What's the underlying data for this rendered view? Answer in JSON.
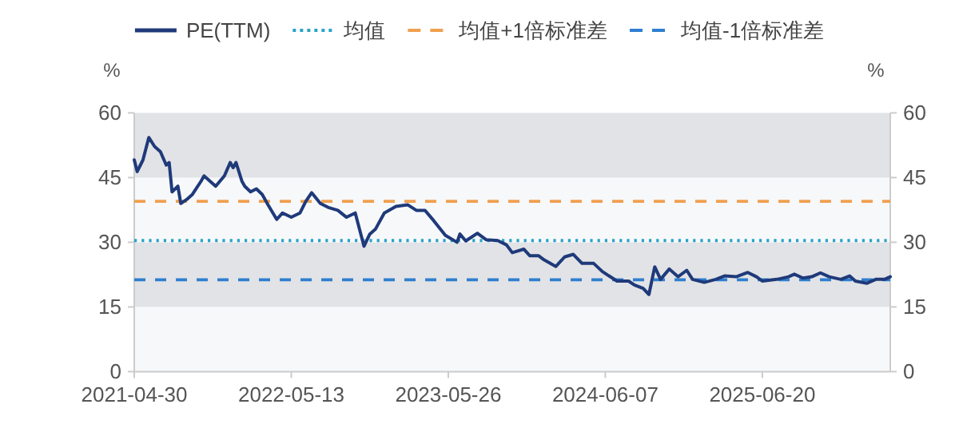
{
  "chart_data": {
    "type": "line",
    "ylabel": "%",
    "y2label": "%",
    "legend": "top",
    "grid": false,
    "xlim": [
      "2021-04-30",
      "2026-04-24"
    ],
    "xticks": [
      "2021-04-30",
      "2022-05-13",
      "2023-05-26",
      "2024-06-07",
      "2025-06-20"
    ],
    "ylim": [
      0,
      60
    ],
    "yticks": [
      0,
      15,
      30,
      45,
      60
    ],
    "y2lim": [
      0,
      60
    ],
    "y2ticks": [
      0,
      15,
      30,
      45,
      60
    ],
    "bands": [
      {
        "axis": "y",
        "from": 0,
        "to": 15,
        "color": "#f7f8fa"
      },
      {
        "axis": "y",
        "from": 15,
        "to": 30,
        "color": "#e2e3e6"
      },
      {
        "axis": "y",
        "from": 30,
        "to": 45,
        "color": "#f7f8fa"
      },
      {
        "axis": "y",
        "from": 45,
        "to": 60,
        "color": "#e2e3e6"
      }
    ],
    "ref_lines": [
      {
        "axis": "y",
        "value": 30.4,
        "label": "均值",
        "color": "#2aa3c8",
        "line_style": "dotted"
      },
      {
        "axis": "y",
        "value": 39.5,
        "label": "均值+1倍标准差",
        "color": "#f0a050",
        "line_style": "dashed"
      },
      {
        "axis": "y",
        "value": 21.3,
        "label": "均值-1倍标准差",
        "color": "#2f7fd0",
        "line_style": "dashed"
      }
    ],
    "series": [
      {
        "name": "PE(TTM)",
        "color": "#1f3a7a",
        "line_style": "solid",
        "x": [
          "2021-04-30",
          "2021-05-07",
          "2021-05-21",
          "2021-06-04",
          "2021-06-18",
          "2021-07-02",
          "2021-07-16",
          "2021-07-23",
          "2021-07-30",
          "2021-08-13",
          "2021-08-20",
          "2021-09-03",
          "2021-09-17",
          "2021-10-08",
          "2021-10-15",
          "2021-10-29",
          "2021-11-12",
          "2021-12-03",
          "2021-12-17",
          "2021-12-24",
          "2021-12-31",
          "2022-01-14",
          "2022-01-21",
          "2022-02-04",
          "2022-02-18",
          "2022-03-04",
          "2022-03-18",
          "2022-04-08",
          "2022-04-22",
          "2022-05-13",
          "2022-06-03",
          "2022-06-17",
          "2022-07-01",
          "2022-07-22",
          "2022-08-12",
          "2022-09-02",
          "2022-09-23",
          "2022-10-14",
          "2022-11-04",
          "2022-11-18",
          "2022-12-02",
          "2022-12-23",
          "2023-01-20",
          "2023-02-17",
          "2023-03-10",
          "2023-03-31",
          "2023-04-21",
          "2023-05-19",
          "2023-06-16",
          "2023-06-23",
          "2023-07-07",
          "2023-08-04",
          "2023-08-25",
          "2023-09-22",
          "2023-10-13",
          "2023-10-27",
          "2023-11-24",
          "2023-12-08",
          "2023-12-29",
          "2024-01-12",
          "2024-02-09",
          "2024-03-01",
          "2024-03-22",
          "2024-04-12",
          "2024-05-10",
          "2024-05-31",
          "2024-07-05",
          "2024-08-02",
          "2024-08-16",
          "2024-09-06",
          "2024-09-20",
          "2024-10-04",
          "2024-10-18",
          "2024-11-08",
          "2024-11-29",
          "2024-12-20",
          "2025-01-03",
          "2025-01-31",
          "2025-02-28",
          "2025-03-21",
          "2025-04-18",
          "2025-05-16",
          "2025-06-06",
          "2025-06-20",
          "2025-07-25",
          "2025-08-22",
          "2025-09-05",
          "2025-09-26",
          "2025-10-17",
          "2025-11-07",
          "2025-11-28",
          "2025-12-26",
          "2026-01-16",
          "2026-01-30",
          "2026-02-27",
          "2026-03-20",
          "2026-04-10",
          "2026-04-24"
        ],
        "values": [
          49.1,
          46.4,
          49.1,
          54.3,
          52.2,
          51,
          47.9,
          48.5,
          41.7,
          43,
          39,
          39.9,
          41.1,
          44.2,
          45.4,
          44.2,
          43,
          45.4,
          48.5,
          47.3,
          48.5,
          44.2,
          43,
          41.7,
          42.4,
          41.1,
          38.7,
          35.3,
          36.8,
          35.8,
          36.8,
          39.5,
          41.5,
          39,
          38,
          37.4,
          35.8,
          36.8,
          29.1,
          31.9,
          33.1,
          36.8,
          38.3,
          38.7,
          37.4,
          37.4,
          35,
          31.6,
          30,
          31.9,
          30.3,
          32.1,
          30.6,
          30.4,
          29.4,
          27.6,
          28.4,
          26.9,
          26.9,
          25.9,
          24.4,
          26.6,
          27.2,
          25.1,
          25.1,
          23.2,
          21,
          21,
          20.1,
          19.3,
          17.9,
          24.3,
          21.4,
          23.8,
          22,
          23.5,
          21.4,
          20.7,
          21.4,
          22.2,
          22,
          23,
          22,
          21,
          21.4,
          22,
          22.6,
          21.7,
          22,
          22.9,
          22,
          21.4,
          22.2,
          21,
          20.5,
          21.4,
          21.4,
          22
        ]
      }
    ]
  }
}
